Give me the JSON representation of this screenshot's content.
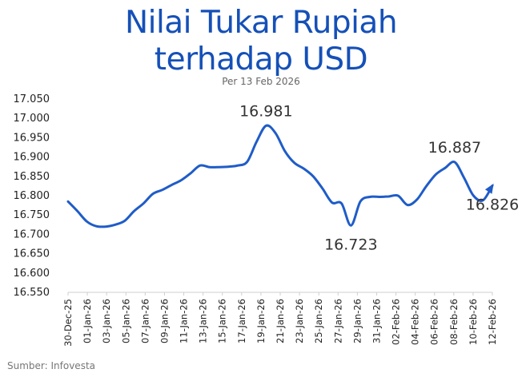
{
  "title_line1": "Nilai Tukar Rupiah",
  "title_line2": "terhadap USD",
  "subtitle": "Per 13 Feb 2026",
  "source": "Sumber: Infovesta",
  "colors": {
    "line": "#1f5cc8",
    "title": "#1550b8",
    "axis": "#cfcfcf"
  },
  "chart_data": {
    "type": "line",
    "title": "Nilai Tukar Rupiah terhadap USD",
    "subtitle": "Per 13 Feb 2026",
    "xlabel": "",
    "ylabel": "",
    "ylim": [
      16550,
      17050
    ],
    "yticks": [
      "16.550",
      "16.600",
      "16.650",
      "16.700",
      "16.750",
      "16.800",
      "16.850",
      "16.900",
      "16.950",
      "17.000",
      "17.050"
    ],
    "x_tick_labels": [
      "30-Dec-25",
      "01-Jan-26",
      "03-Jan-26",
      "05-Jan-26",
      "07-Jan-26",
      "09-Jan-26",
      "11-Jan-26",
      "13-Jan-26",
      "15-Jan-26",
      "17-Jan-26",
      "19-Jan-26",
      "21-Jan-26",
      "23-Jan-26",
      "25-Jan-26",
      "27-Jan-26",
      "29-Jan-26",
      "31-Jan-26",
      "02-Feb-26",
      "04-Feb-26",
      "06-Feb-26",
      "08-Feb-26",
      "10-Feb-26",
      "12-Feb-26"
    ],
    "grid": false,
    "legend": "none",
    "series": [
      {
        "points": [
          [
            "2025-12-30",
            16785
          ],
          [
            "2025-12-31",
            16760
          ],
          [
            "2026-01-01",
            16733
          ],
          [
            "2026-01-02",
            16721
          ],
          [
            "2026-01-03",
            16720
          ],
          [
            "2026-01-04",
            16725
          ],
          [
            "2026-01-05",
            16735
          ],
          [
            "2026-01-06",
            16760
          ],
          [
            "2026-01-07",
            16780
          ],
          [
            "2026-01-08",
            16805
          ],
          [
            "2026-01-09",
            16815
          ],
          [
            "2026-01-10",
            16828
          ],
          [
            "2026-01-11",
            16840
          ],
          [
            "2026-01-12",
            16858
          ],
          [
            "2026-01-13",
            16878
          ],
          [
            "2026-01-14",
            16874
          ],
          [
            "2026-01-15",
            16874
          ],
          [
            "2026-01-16",
            16875
          ],
          [
            "2026-01-17",
            16878
          ],
          [
            "2026-01-18",
            16888
          ],
          [
            "2026-01-19",
            16940
          ],
          [
            "2026-01-20",
            16981
          ],
          [
            "2026-01-21",
            16962
          ],
          [
            "2026-01-22",
            16915
          ],
          [
            "2026-01-23",
            16885
          ],
          [
            "2026-01-24",
            16870
          ],
          [
            "2026-01-25",
            16850
          ],
          [
            "2026-01-26",
            16818
          ],
          [
            "2026-01-27",
            16782
          ],
          [
            "2026-01-28",
            16780
          ],
          [
            "2026-01-29",
            16723
          ],
          [
            "2026-01-30",
            16785
          ],
          [
            "2026-01-31",
            16797
          ],
          [
            "2026-02-01",
            16797
          ],
          [
            "2026-02-02",
            16798
          ],
          [
            "2026-02-03",
            16800
          ],
          [
            "2026-02-04",
            16776
          ],
          [
            "2026-02-05",
            16790
          ],
          [
            "2026-02-06",
            16825
          ],
          [
            "2026-02-07",
            16855
          ],
          [
            "2026-02-08",
            16872
          ],
          [
            "2026-02-09",
            16887
          ],
          [
            "2026-02-10",
            16846
          ],
          [
            "2026-02-11",
            16800
          ],
          [
            "2026-02-12",
            16788
          ],
          [
            "2026-02-13",
            16826
          ]
        ]
      }
    ],
    "annotations": [
      {
        "date": "2026-01-20",
        "value": 16981,
        "label": "16.981",
        "position": "above"
      },
      {
        "date": "2026-01-29",
        "value": 16723,
        "label": "16.723",
        "position": "below"
      },
      {
        "date": "2026-02-09",
        "value": 16887,
        "label": "16.887",
        "position": "above"
      },
      {
        "date": "2026-02-13",
        "value": 16826,
        "label": "16.826",
        "position": "below"
      }
    ]
  }
}
